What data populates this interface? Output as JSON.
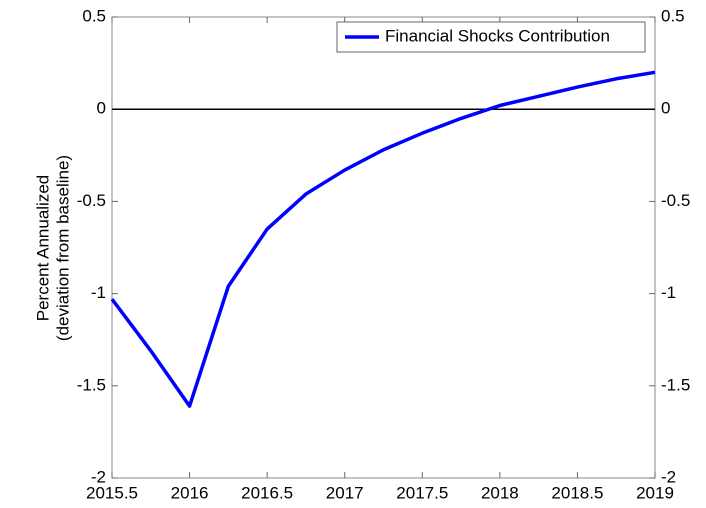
{
  "chart_data": {
    "type": "line",
    "ylabel": [
      "Percent Annualized",
      "(deviation from baseline)"
    ],
    "x": [
      2015.5,
      2015.75,
      2016,
      2016.25,
      2016.5,
      2016.75,
      2017,
      2017.25,
      2017.5,
      2017.75,
      2018,
      2018.25,
      2018.5,
      2018.75,
      2019
    ],
    "series": [
      {
        "name": "Financial Shocks Contribution",
        "color": "#0000ff",
        "values": [
          -1.03,
          -1.31,
          -1.61,
          -0.96,
          -0.65,
          -0.46,
          -0.33,
          -0.22,
          -0.13,
          -0.05,
          0.02,
          0.07,
          0.12,
          0.165,
          0.2
        ]
      }
    ],
    "xlim": [
      2015.5,
      2019
    ],
    "xticks": [
      2015.5,
      2016,
      2016.5,
      2017,
      2017.5,
      2018,
      2018.5,
      2019
    ],
    "ylim": [
      -2,
      0.5
    ],
    "yticks": [
      0.5,
      0,
      -0.5,
      -1,
      -1.5,
      -2
    ],
    "y2lim": [
      -2,
      0.5
    ],
    "y2ticks": [
      0.5,
      0,
      -0.5,
      -1,
      -1.5,
      -2
    ],
    "reference_line": 0,
    "legend": "upper right",
    "grid": false
  }
}
